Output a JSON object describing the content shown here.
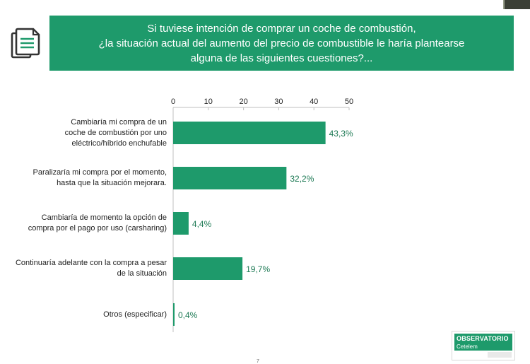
{
  "title": {
    "lines": [
      "Si tuviese intención de comprar un coche de combustión,",
      "¿la situación actual del aumento del precio de combustible le haría plantearse",
      "alguna de las siguientes cuestiones?..."
    ]
  },
  "colors": {
    "accent": "#1e9a6b",
    "value_text": "#1e7a55"
  },
  "chart_data": {
    "type": "bar",
    "orientation": "horizontal",
    "categories": [
      [
        "Cambiaría mi compra de un",
        "coche de combustión por uno",
        "eléctrico/híbrido enchufable"
      ],
      [
        "Paralizaría mi compra por el momento,",
        "hasta que la situación mejorara."
      ],
      [
        "Cambiaría de momento la opción de",
        "compra por el pago por uso (carsharing)"
      ],
      [
        "Continuaría adelante con la compra a pesar",
        "de la situación"
      ],
      [
        "Otros (especificar)"
      ]
    ],
    "values": [
      43.3,
      32.2,
      4.4,
      19.7,
      0.4
    ],
    "value_labels": [
      "43,3%",
      "32,2%",
      "4,4%",
      "19,7%",
      "0,4%"
    ],
    "xlim": [
      0,
      50
    ],
    "xticks": [
      "0",
      "10",
      "20",
      "30",
      "40",
      "50"
    ],
    "axis_position": "top",
    "grid": false,
    "legend": "none"
  },
  "logo": {
    "line1": "OBSERVATORIO",
    "line2": "Cetelem"
  },
  "page_number": "7"
}
